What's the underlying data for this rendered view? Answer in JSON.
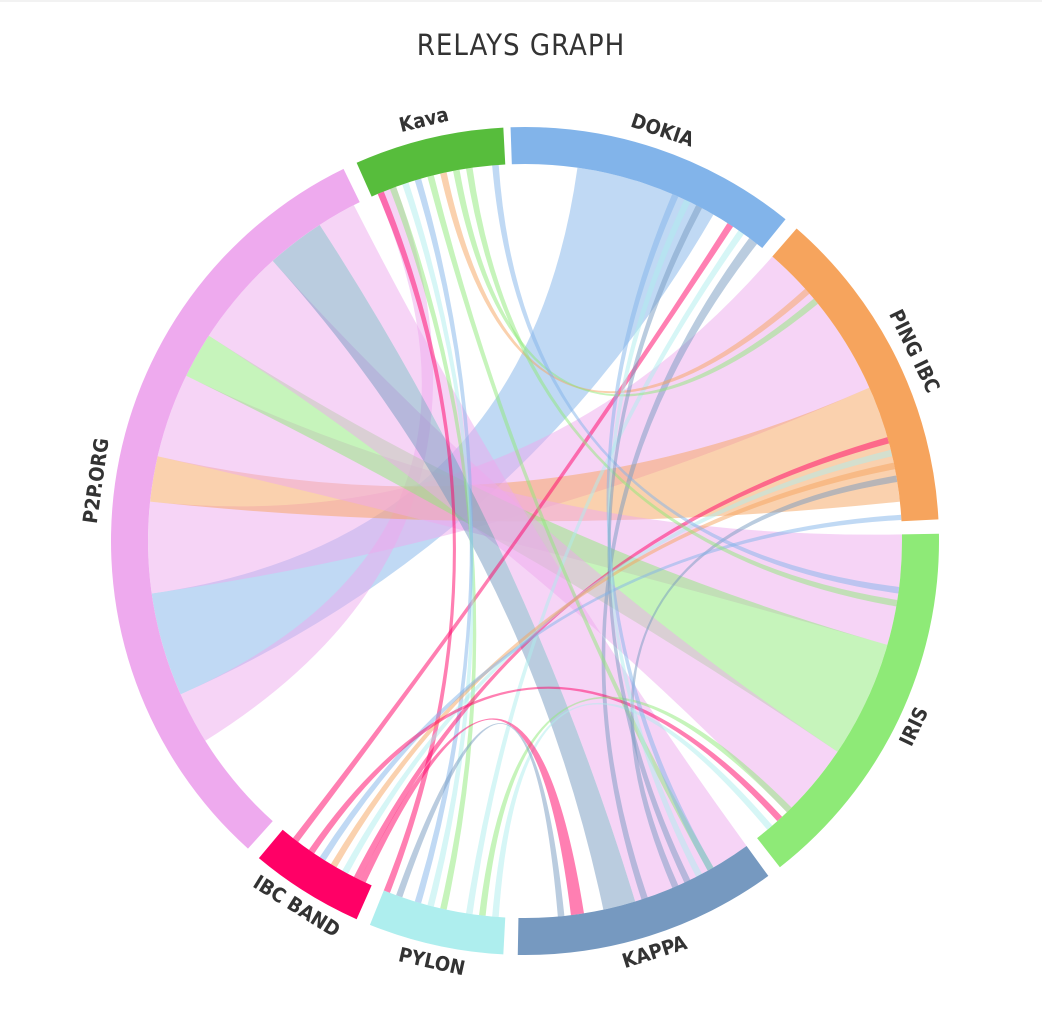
{
  "header": {
    "title": "RELAYS GRAPH"
  },
  "chart_data": {
    "type": "chord",
    "title": "RELAYS GRAPH",
    "groups": [
      {
        "name": "Kava",
        "color": "#57bd3c",
        "start_deg": -24,
        "end_deg": -3
      },
      {
        "name": "DOKIA",
        "color": "#82b4ea",
        "start_deg": -2,
        "end_deg": 39
      },
      {
        "name": "PING IBC",
        "color": "#f6a45d",
        "start_deg": 41,
        "end_deg": 87
      },
      {
        "name": "IRIS",
        "color": "#8eea77",
        "start_deg": 89,
        "end_deg": 142
      },
      {
        "name": "KAPPA",
        "color": "#7699c0",
        "start_deg": 144,
        "end_deg": 181
      },
      {
        "name": "PYLON",
        "color": "#aeeeee",
        "start_deg": 183,
        "end_deg": 202
      },
      {
        "name": "IBC BAND",
        "color": "#ff0066",
        "start_deg": 204,
        "end_deg": 220
      },
      {
        "name": "P2P.ORG",
        "color": "#eeaaee",
        "start_deg": 222,
        "end_deg": 334
      }
    ],
    "ribbons": [
      {
        "color": "#82b4ea",
        "a": [
          246,
          262
        ],
        "b": [
          8,
          30
        ]
      },
      {
        "color": "#eeaaee",
        "a": [
          238,
          246
        ],
        "b": [
          -23,
          -20
        ]
      },
      {
        "color": "#eeaaee",
        "a": [
          262,
          276
        ],
        "b": [
          41,
          66
        ]
      },
      {
        "color": "#f6a45d",
        "a": [
          276,
          283
        ],
        "b": [
          66,
          84
        ]
      },
      {
        "color": "#eeaaee",
        "a": [
          283,
          296
        ],
        "b": [
          89,
          106
        ]
      },
      {
        "color": "#8eea77",
        "a": [
          296,
          303
        ],
        "b": [
          106,
          124
        ]
      },
      {
        "color": "#eeaaee",
        "a": [
          303,
          318
        ],
        "b": [
          124,
          136
        ]
      },
      {
        "color": "#7699c0",
        "a": [
          318,
          327
        ],
        "b": [
          163,
          168
        ]
      },
      {
        "color": "#eeaaee",
        "a": [
          327,
          333
        ],
        "b": [
          144,
          163
        ]
      },
      {
        "color": "#ff0066",
        "a": [
          32.5,
          33.5
        ],
        "b": [
          217,
          218
        ]
      },
      {
        "color": "#aeeeee",
        "a": [
          34.5,
          35.5
        ],
        "b": [
          188,
          189
        ]
      },
      {
        "color": "#7699c0",
        "a": [
          36.5,
          38
        ],
        "b": [
          161,
          162
        ]
      },
      {
        "color": "#8eea77",
        "a": [
          -21,
          -20
        ],
        "b": [
          192,
          193
        ]
      },
      {
        "color": "#aeeeee",
        "a": [
          -19,
          -18
        ],
        "b": [
          194,
          195
        ]
      },
      {
        "color": "#82b4ea",
        "a": [
          -17,
          -16
        ],
        "b": [
          196,
          197
        ]
      },
      {
        "color": "#8eea77",
        "a": [
          -15,
          -14
        ],
        "b": [
          150,
          151
        ]
      },
      {
        "color": "#f6a45d",
        "a": [
          -13,
          -12
        ],
        "b": [
          48,
          49
        ]
      },
      {
        "color": "#8eea77",
        "a": [
          -11,
          -10
        ],
        "b": [
          50,
          51
        ]
      },
      {
        "color": "#ff0066",
        "a": [
          -23,
          -22
        ],
        "b": [
          201,
          202
        ]
      },
      {
        "color": "#ff0066",
        "a": [
          74,
          75
        ],
        "b": [
          206,
          207
        ]
      },
      {
        "color": "#aeeeee",
        "a": [
          76,
          77
        ],
        "b": [
          208,
          209
        ]
      },
      {
        "color": "#f6a45d",
        "a": [
          78,
          79
        ],
        "b": [
          210,
          211
        ]
      },
      {
        "color": "#7699c0",
        "a": [
          80,
          81
        ],
        "b": [
          156,
          157
        ]
      },
      {
        "color": "#82b4ea",
        "a": [
          86,
          86.8
        ],
        "b": [
          212,
          213
        ]
      },
      {
        "color": "#ff0066",
        "a": [
          137,
          138
        ],
        "b": [
          214,
          215
        ]
      },
      {
        "color": "#aeeeee",
        "a": [
          139,
          140
        ],
        "b": [
          184,
          185
        ]
      },
      {
        "color": "#8eea77",
        "a": [
          135,
          136
        ],
        "b": [
          186,
          187
        ]
      },
      {
        "color": "#82b4ea",
        "a": [
          97,
          98
        ],
        "b": [
          -5,
          -4
        ]
      },
      {
        "color": "#8eea77",
        "a": [
          99,
          100
        ],
        "b": [
          -9,
          -8
        ]
      },
      {
        "color": "#ff0066",
        "a": [
          171,
          173
        ],
        "b": [
          205,
          206
        ]
      },
      {
        "color": "#7699c0",
        "a": [
          174,
          175
        ],
        "b": [
          199,
          200
        ]
      },
      {
        "color": "#82b4ea",
        "a": [
          23,
          24
        ],
        "b": [
          150,
          151
        ]
      },
      {
        "color": "#aeeeee",
        "a": [
          25,
          26
        ],
        "b": [
          152,
          153
        ]
      },
      {
        "color": "#7699c0",
        "a": [
          27,
          28
        ],
        "b": [
          154,
          155
        ]
      }
    ]
  }
}
